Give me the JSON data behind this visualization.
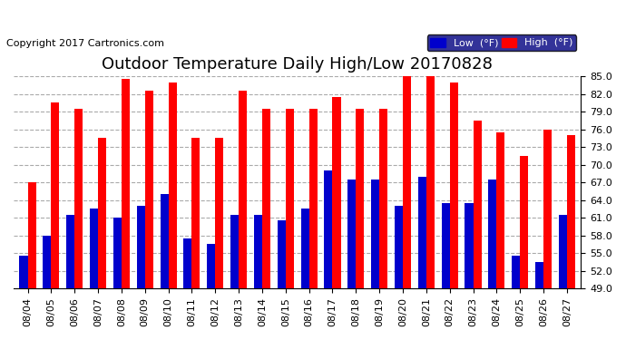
{
  "title": "Outdoor Temperature Daily High/Low 20170828",
  "copyright": "Copyright 2017 Cartronics.com",
  "dates": [
    "08/04",
    "08/05",
    "08/06",
    "08/07",
    "08/08",
    "08/09",
    "08/10",
    "08/11",
    "08/12",
    "08/13",
    "08/14",
    "08/15",
    "08/16",
    "08/17",
    "08/18",
    "08/19",
    "08/20",
    "08/21",
    "08/22",
    "08/23",
    "08/24",
    "08/25",
    "08/26",
    "08/27"
  ],
  "highs": [
    67.0,
    80.5,
    79.5,
    74.5,
    84.5,
    82.5,
    84.0,
    74.5,
    74.5,
    82.5,
    79.5,
    79.5,
    79.5,
    81.5,
    79.5,
    79.5,
    85.0,
    85.0,
    84.0,
    77.5,
    75.5,
    71.5,
    76.0,
    75.0
  ],
  "lows": [
    54.5,
    58.0,
    61.5,
    62.5,
    61.0,
    63.0,
    65.0,
    57.5,
    56.5,
    61.5,
    61.5,
    60.5,
    62.5,
    69.0,
    67.5,
    67.5,
    63.0,
    68.0,
    63.5,
    63.5,
    67.5,
    54.5,
    53.5,
    61.5
  ],
  "high_color": "#ff0000",
  "low_color": "#0000cc",
  "bg_color": "#ffffff",
  "plot_bg_color": "#ffffff",
  "grid_color": "#aaaaaa",
  "ylim_min": 49.0,
  "ylim_max": 85.0,
  "yticks": [
    49.0,
    52.0,
    55.0,
    58.0,
    61.0,
    64.0,
    67.0,
    70.0,
    73.0,
    76.0,
    79.0,
    82.0,
    85.0
  ],
  "legend_low_label": "Low  (°F)",
  "legend_high_label": "High  (°F)",
  "title_fontsize": 13,
  "copyright_fontsize": 8,
  "tick_fontsize": 8,
  "bar_width": 0.35
}
